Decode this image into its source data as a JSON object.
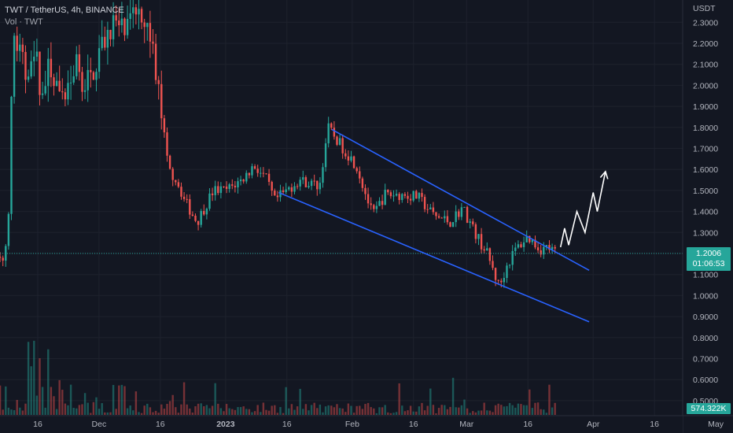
{
  "legend": {
    "symbol_line": "TWT / TetherUS, 4h, BINANCE",
    "volume_line": "Vol · TWT"
  },
  "price_scale": {
    "currency": "USDT",
    "ticks": [
      "2.3000",
      "2.2000",
      "2.1000",
      "2.0000",
      "1.9000",
      "1.8000",
      "1.7000",
      "1.6000",
      "1.5000",
      "1.4000",
      "1.3000",
      "1.2000",
      "1.1000",
      "1.0000",
      "0.9000",
      "0.8000",
      "0.7000",
      "0.6000",
      "0.5000"
    ]
  },
  "last_price": {
    "value": "1.2006",
    "countdown": "01:06:53"
  },
  "volume_badge": "574.322K",
  "time_axis": {
    "labels": [
      "16",
      "Dec",
      "16",
      "2023",
      "16",
      "Feb",
      "16",
      "Mar",
      "16",
      "Apr",
      "16",
      "May"
    ],
    "bold": [
      "2023"
    ]
  },
  "colors": {
    "up": "#26a69a",
    "down": "#ef5350",
    "channel": "#2962ff",
    "projection": "#ffffff",
    "background": "#131722"
  },
  "chart_data": {
    "type": "candlestick",
    "interval": "4h",
    "ylim": [
      0.5,
      2.35
    ],
    "channel": {
      "upper": {
        "from": [
          "2023-01-27",
          1.79
        ],
        "to": [
          "2023-03-31",
          1.12
        ]
      },
      "lower": {
        "from": [
          "2023-01-14",
          1.49
        ],
        "to": [
          "2023-03-31",
          0.875
        ]
      }
    },
    "projection_path": [
      [
        "2023-03-24",
        1.23
      ],
      [
        "2023-03-25",
        1.32
      ],
      [
        "2023-03-26",
        1.24
      ],
      [
        "2023-03-28",
        1.4
      ],
      [
        "2023-03-30",
        1.3
      ],
      [
        "2023-04-01",
        1.49
      ],
      [
        "2023-04-02",
        1.4
      ],
      [
        "2023-04-04",
        1.59
      ]
    ],
    "price_trend": [
      [
        "2022-11-04",
        1.23
      ],
      [
        "2022-11-07",
        1.15
      ],
      [
        "2022-11-08",
        1.2
      ],
      [
        "2022-11-09",
        1.45
      ],
      [
        "2022-11-10",
        2.25
      ],
      [
        "2022-11-13",
        2.05
      ],
      [
        "2022-11-15",
        2.2
      ],
      [
        "2022-11-17",
        1.95
      ],
      [
        "2022-11-19",
        2.1
      ],
      [
        "2022-11-22",
        1.9
      ],
      [
        "2022-11-25",
        2.1
      ],
      [
        "2022-11-28",
        2.0
      ],
      [
        "2022-12-01",
        2.15
      ],
      [
        "2022-12-04",
        2.3
      ],
      [
        "2022-12-08",
        2.25
      ],
      [
        "2022-12-11",
        2.4
      ],
      [
        "2022-12-14",
        2.2
      ],
      [
        "2022-12-16",
        1.9
      ],
      [
        "2022-12-18",
        1.6
      ],
      [
        "2022-12-20",
        1.55
      ],
      [
        "2022-12-22",
        1.45
      ],
      [
        "2022-12-25",
        1.35
      ],
      [
        "2022-12-29",
        1.5
      ],
      [
        "2023-01-01",
        1.5
      ],
      [
        "2023-01-05",
        1.55
      ],
      [
        "2023-01-08",
        1.62
      ],
      [
        "2023-01-11",
        1.55
      ],
      [
        "2023-01-13",
        1.45
      ],
      [
        "2023-01-16",
        1.5
      ],
      [
        "2023-01-19",
        1.55
      ],
      [
        "2023-01-24",
        1.52
      ],
      [
        "2023-01-26",
        1.8
      ],
      [
        "2023-01-29",
        1.72
      ],
      [
        "2023-02-02",
        1.62
      ],
      [
        "2023-02-06",
        1.38
      ],
      [
        "2023-02-09",
        1.48
      ],
      [
        "2023-02-13",
        1.48
      ],
      [
        "2023-02-17",
        1.47
      ],
      [
        "2023-02-21",
        1.38
      ],
      [
        "2023-02-25",
        1.35
      ],
      [
        "2023-02-28",
        1.42
      ],
      [
        "2023-03-03",
        1.3
      ],
      [
        "2023-03-06",
        1.2
      ],
      [
        "2023-03-09",
        1.04
      ],
      [
        "2023-03-11",
        1.15
      ],
      [
        "2023-03-13",
        1.22
      ],
      [
        "2023-03-16",
        1.28
      ],
      [
        "2023-03-19",
        1.22
      ],
      [
        "2023-03-21",
        1.23
      ],
      [
        "2023-03-23",
        1.2
      ]
    ]
  }
}
